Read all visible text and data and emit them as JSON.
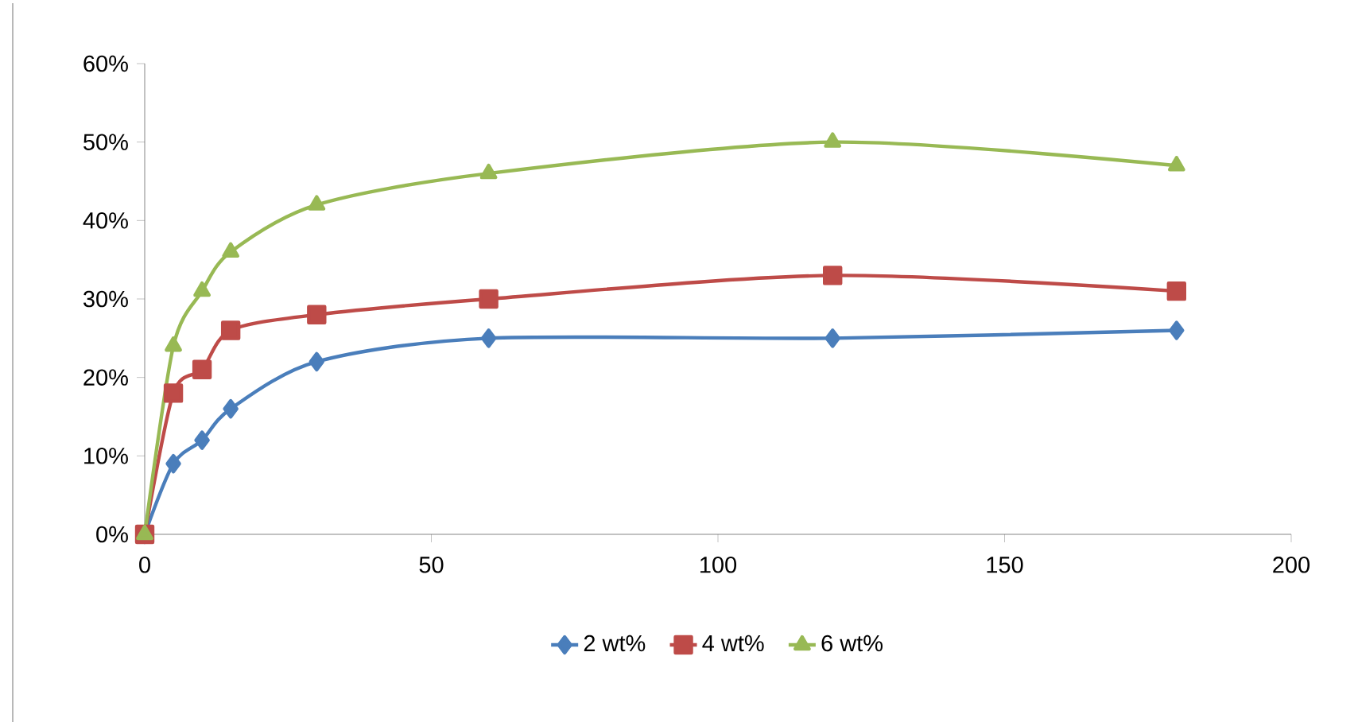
{
  "chart_data": {
    "type": "line",
    "x": [
      0,
      5,
      10,
      15,
      30,
      60,
      120,
      180
    ],
    "series": [
      {
        "name": "2 wt%",
        "color": "#4a7ebb",
        "marker": "diamond",
        "values": [
          0,
          9,
          12,
          16,
          22,
          25,
          25,
          26
        ]
      },
      {
        "name": "4 wt%",
        "color": "#be4b48",
        "marker": "square",
        "values": [
          0,
          18,
          21,
          26,
          28,
          30,
          33,
          31
        ]
      },
      {
        "name": "6 wt%",
        "color": "#98b954",
        "marker": "triangle",
        "values": [
          0,
          24,
          31,
          36,
          42,
          46,
          50,
          47
        ]
      }
    ],
    "xlim": [
      0,
      200
    ],
    "xticks": [
      0,
      50,
      100,
      150,
      200
    ],
    "ylim": [
      0,
      60
    ],
    "yticks": [
      {
        "value": 0,
        "label": "0%"
      },
      {
        "value": 10,
        "label": "10%"
      },
      {
        "value": 20,
        "label": "20%"
      },
      {
        "value": 30,
        "label": "30%"
      },
      {
        "value": 40,
        "label": "40%"
      },
      {
        "value": 50,
        "label": "50%"
      },
      {
        "value": 60,
        "label": "60%"
      }
    ],
    "grid": false,
    "legend": "bottom"
  }
}
